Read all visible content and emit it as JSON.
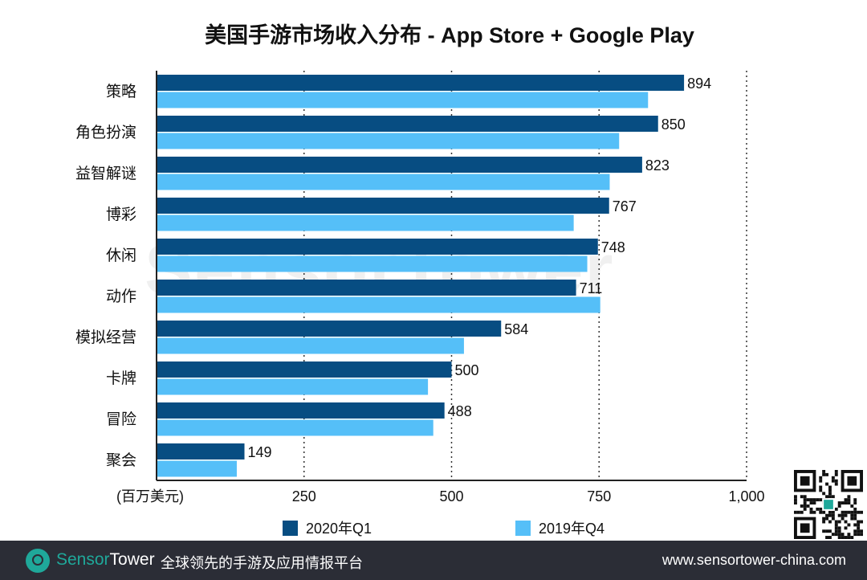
{
  "chart_data": {
    "type": "bar",
    "orientation": "horizontal",
    "title": "美国手游市场收入分布 - App Store + Google Play",
    "xlabel": "(百万美元)",
    "categories": [
      "策略",
      "角色扮演",
      "益智解谜",
      "博彩",
      "休闲",
      "动作",
      "模拟经营",
      "卡牌",
      "冒险",
      "聚会"
    ],
    "series": [
      {
        "name": "2020年Q1",
        "color": "#074d82",
        "values": [
          894,
          850,
          823,
          767,
          748,
          711,
          584,
          500,
          488,
          149
        ],
        "labels_shown": true
      },
      {
        "name": "2019年Q4",
        "color": "#55bff8",
        "values": [
          833,
          784,
          768,
          707,
          730,
          752,
          521,
          460,
          469,
          136
        ],
        "labels_shown": false
      }
    ],
    "xlim": [
      0,
      1000
    ],
    "xticks": [
      250,
      500,
      750,
      1000
    ],
    "xtick_labels": [
      "250",
      "500",
      "750",
      "1,000"
    ],
    "grid": "vertical dotted",
    "legend": "bottom"
  },
  "watermark": "SensorTower",
  "footer": {
    "brand_a": "Sensor",
    "brand_b": "Tower",
    "tagline": "全球领先的手游及应用情报平台",
    "url": "www.sensortower-china.com"
  }
}
